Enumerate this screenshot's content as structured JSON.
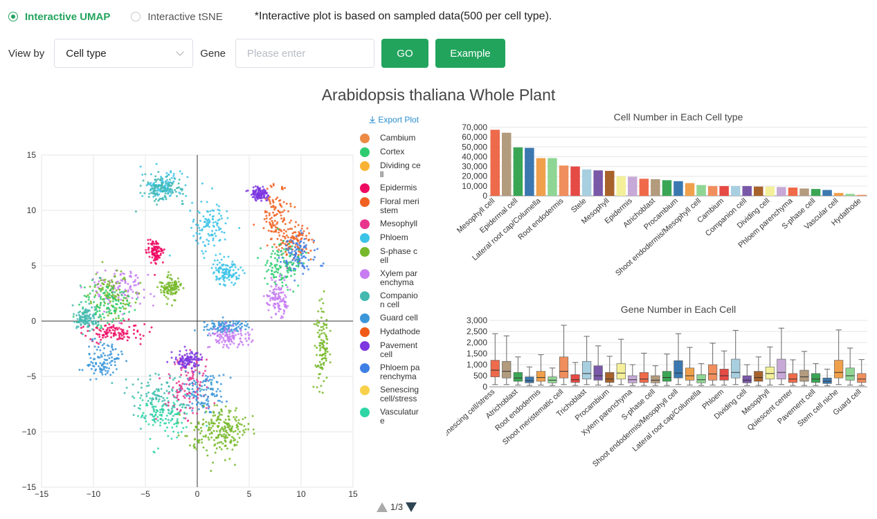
{
  "view_mode": {
    "options": [
      "Interactive UMAP",
      "Interactive tSNE"
    ],
    "selected": "Interactive UMAP",
    "note": "*Interactive plot is based on sampled data(500 per cell type)."
  },
  "controls": {
    "view_by_label": "View by",
    "view_by_value": "Cell type",
    "gene_label": "Gene",
    "gene_placeholder": "Please enter",
    "go_label": "GO",
    "example_label": "Example"
  },
  "title": "Arabidopsis thaliana Whole Plant",
  "export_label": "Export Plot",
  "legend": {
    "items": [
      {
        "label": "Cambium",
        "color": "#ed8b45"
      },
      {
        "label": "Cortex",
        "color": "#2ecc71"
      },
      {
        "label": "Dividing cell",
        "color": "#f9b233"
      },
      {
        "label": "Epidermis",
        "color": "#ee0a63"
      },
      {
        "label": "Floral meristem",
        "color": "#f06020"
      },
      {
        "label": "Mesophyll",
        "color": "#e8368f"
      },
      {
        "label": "Phloem",
        "color": "#3cc3e8"
      },
      {
        "label": "S-phase cell",
        "color": "#77b82a"
      },
      {
        "label": "Xylem parenchyma",
        "color": "#c77cf2"
      },
      {
        "label": "Companion cell",
        "color": "#43b9b0"
      },
      {
        "label": "Guard cell",
        "color": "#3c97d9"
      },
      {
        "label": "Hydathode",
        "color": "#f05a16"
      },
      {
        "label": "Pavement cell",
        "color": "#7d36e0"
      },
      {
        "label": "Phloem parenchyma",
        "color": "#3f7fe6"
      },
      {
        "label": "Senescing cell/stress",
        "color": "#f8d04a"
      },
      {
        "label": "Vasculature",
        "color": "#2ed6a6"
      }
    ],
    "page": "1/3"
  },
  "chart_data": [
    {
      "type": "scatter",
      "xlim": [
        -15,
        15
      ],
      "ylim": [
        -15,
        15
      ],
      "xticks": [
        "−15",
        "−10",
        "−5",
        "0",
        "5",
        "10",
        "15"
      ],
      "yticks": [
        "15",
        "10",
        "5",
        "0",
        "−5",
        "−10",
        "−15"
      ],
      "grid": true,
      "clusters": [
        {
          "color": "#3cc3e8",
          "x": -3.4,
          "y": 12.2,
          "sx": 1.0,
          "sy": 0.6
        },
        {
          "color": "#43b9b0",
          "x": -3.2,
          "y": 12.0,
          "sx": 1.0,
          "sy": 0.6
        },
        {
          "color": "#3cc3e8",
          "x": 1.2,
          "y": 8.6,
          "sx": 0.9,
          "sy": 1.1
        },
        {
          "color": "#ee0a63",
          "x": -4.0,
          "y": 6.2,
          "sx": 0.4,
          "sy": 0.5
        },
        {
          "color": "#c77cf2",
          "x": -7.5,
          "y": 3.0,
          "sx": 1.5,
          "sy": 1.0
        },
        {
          "color": "#77b82a",
          "x": -8.2,
          "y": 2.5,
          "sx": 1.0,
          "sy": 1.0
        },
        {
          "color": "#2ecc71",
          "x": -9.0,
          "y": 1.5,
          "sx": 1.2,
          "sy": 1.0
        },
        {
          "color": "#ee0a63",
          "x": -7.8,
          "y": -1.0,
          "sx": 1.5,
          "sy": 0.4
        },
        {
          "color": "#43b9b0",
          "x": -10.8,
          "y": 0.2,
          "sx": 0.6,
          "sy": 0.5
        },
        {
          "color": "#3c97d9",
          "x": -9.0,
          "y": -3.5,
          "sx": 0.8,
          "sy": 0.8
        },
        {
          "color": "#77b82a",
          "x": -2.6,
          "y": 3.0,
          "sx": 0.5,
          "sy": 0.5
        },
        {
          "color": "#3cc3e8",
          "x": 2.8,
          "y": 4.5,
          "sx": 0.6,
          "sy": 0.6
        },
        {
          "color": "#f06020",
          "x": 7.5,
          "y": 9.5,
          "sx": 0.8,
          "sy": 1.3
        },
        {
          "color": "#f06020",
          "x": 9.5,
          "y": 7.2,
          "sx": 1.0,
          "sy": 0.8
        },
        {
          "color": "#3f7fe6",
          "x": 9.8,
          "y": 6.0,
          "sx": 0.8,
          "sy": 0.8
        },
        {
          "color": "#2ecc71",
          "x": 8.2,
          "y": 5.0,
          "sx": 0.9,
          "sy": 1.0
        },
        {
          "color": "#c77cf2",
          "x": 7.8,
          "y": 2.0,
          "sx": 0.5,
          "sy": 0.8
        },
        {
          "color": "#7d36e0",
          "x": 6.0,
          "y": 11.5,
          "sx": 0.4,
          "sy": 0.3
        },
        {
          "color": "#77b82a",
          "x": 12.0,
          "y": -2.5,
          "sx": 0.35,
          "sy": 1.8
        },
        {
          "color": "#3c97d9",
          "x": 2.5,
          "y": -0.5,
          "sx": 1.0,
          "sy": 0.3
        },
        {
          "color": "#c77cf2",
          "x": 3.0,
          "y": -1.5,
          "sx": 1.0,
          "sy": 0.5
        },
        {
          "color": "#43b9b0",
          "x": -3.5,
          "y": -7.0,
          "sx": 1.6,
          "sy": 1.2
        },
        {
          "color": "#e8368f",
          "x": -1.0,
          "y": -6.0,
          "sx": 1.0,
          "sy": 1.5
        },
        {
          "color": "#3c97d9",
          "x": 0.5,
          "y": -6.5,
          "sx": 1.0,
          "sy": 1.0
        },
        {
          "color": "#77b82a",
          "x": 1.5,
          "y": -10.5,
          "sx": 1.5,
          "sy": 1.0
        },
        {
          "color": "#77b82a",
          "x": 3.0,
          "y": -9.5,
          "sx": 1.0,
          "sy": 0.8
        },
        {
          "color": "#7d36e0",
          "x": -1.0,
          "y": -3.5,
          "sx": 0.6,
          "sy": 0.4
        },
        {
          "color": "#2ed6a6",
          "x": -3.2,
          "y": -8.5,
          "sx": 1.2,
          "sy": 1.0
        }
      ]
    },
    {
      "type": "bar",
      "title": "Cell Number in Each Cell type",
      "ylim": [
        0,
        70000
      ],
      "yticks": [
        "0",
        "10,000",
        "20,000",
        "30,000",
        "40,000",
        "50,000",
        "60,000",
        "70,000"
      ],
      "categories": [
        "Mesophyll cell",
        "",
        "Epidermal cell",
        "",
        "Lateral root cap/Columella",
        "",
        "Root endodermis",
        "",
        "Stele",
        "",
        "Mesophyll",
        "",
        "Epidermis",
        "",
        "Atrichoblast",
        "",
        "Procambium",
        "",
        "Shoot endodermis/Mesophyll cell",
        "",
        "Cambium",
        "",
        "Companion cell",
        "",
        "Dividing cell",
        "",
        "Phloem parenchyma",
        "",
        "S-phase cell",
        "",
        "Vascular cell",
        "",
        "Hydathode"
      ],
      "values": [
        67500,
        64500,
        49500,
        49000,
        38500,
        38500,
        31000,
        30000,
        27000,
        26000,
        25500,
        20000,
        19500,
        17500,
        17000,
        16000,
        15000,
        13000,
        11000,
        10000,
        10000,
        10000,
        10000,
        9500,
        9500,
        9000,
        8500,
        7500,
        7000,
        6000,
        3000,
        2000,
        1000
      ],
      "colors": [
        "#ed6a4b",
        "#b39b7e",
        "#3aa655",
        "#3c78b0",
        "#f0a04b",
        "#8fd694",
        "#f08f5d",
        "#e64a44",
        "#a8cfe0",
        "#7a58a8",
        "#a8622b",
        "#f4f09a",
        "#c7a9d8",
        "#f06a4a",
        "#b39b7e",
        "#3aa655",
        "#3c78b0",
        "#f0a04b",
        "#8fd694",
        "#f08f5d",
        "#e64a44",
        "#a8cfe0",
        "#7a58a8",
        "#a8622b",
        "#f4f09a",
        "#c7a9d8",
        "#f06a4a",
        "#b39b7e",
        "#3aa655",
        "#3c78b0",
        "#f0a04b",
        "#8fd694",
        "#f08f5d"
      ]
    },
    {
      "type": "box",
      "title": "Gene Number in Each Cell",
      "ylim": [
        0,
        3000
      ],
      "yticks": [
        "0",
        "500",
        "1,000",
        "1,500",
        "2,000",
        "2,500",
        "3,000"
      ],
      "categories": [
        "Senescing cell/stress",
        "",
        "Atrichoblast",
        "",
        "Root endodermis",
        "",
        "Shoot meristematic cell",
        "",
        "Trichoblast",
        "",
        "Procambium",
        "",
        "Xylem parenchyma",
        "",
        "S-phase cell",
        "",
        "Shoot endodermis/Mesophyll cell",
        "",
        "Lateral root cap/Columella",
        "",
        "Phloem",
        "",
        "Dividing cell",
        "",
        "Mesophyll",
        "",
        "Quiescent center",
        "",
        "Pavement cell",
        "",
        "Stem cell niche",
        "",
        "Guard cell"
      ],
      "boxes": [
        {
          "min": 100,
          "q1": 450,
          "med": 750,
          "q3": 1200,
          "max": 2400
        },
        {
          "min": 100,
          "q1": 400,
          "med": 700,
          "q3": 1150,
          "max": 2300
        },
        {
          "min": 80,
          "q1": 250,
          "med": 400,
          "q3": 650,
          "max": 1350
        },
        {
          "min": 60,
          "q1": 180,
          "med": 280,
          "q3": 450,
          "max": 900
        },
        {
          "min": 80,
          "q1": 250,
          "med": 420,
          "q3": 700,
          "max": 1450
        },
        {
          "min": 60,
          "q1": 180,
          "med": 300,
          "q3": 450,
          "max": 850
        },
        {
          "min": 100,
          "q1": 400,
          "med": 700,
          "q3": 1350,
          "max": 2780
        },
        {
          "min": 60,
          "q1": 200,
          "med": 320,
          "q3": 550,
          "max": 1100
        },
        {
          "min": 100,
          "q1": 350,
          "med": 600,
          "q3": 1150,
          "max": 2280
        },
        {
          "min": 80,
          "q1": 300,
          "med": 500,
          "q3": 950,
          "max": 1850
        },
        {
          "min": 60,
          "q1": 200,
          "med": 350,
          "q3": 650,
          "max": 1380
        },
        {
          "min": 100,
          "q1": 350,
          "med": 620,
          "q3": 1050,
          "max": 2150
        },
        {
          "min": 60,
          "q1": 180,
          "med": 320,
          "q3": 500,
          "max": 1000
        },
        {
          "min": 60,
          "q1": 200,
          "med": 350,
          "q3": 650,
          "max": 1520
        },
        {
          "min": 60,
          "q1": 180,
          "med": 300,
          "q3": 500,
          "max": 950
        },
        {
          "min": 60,
          "q1": 250,
          "med": 420,
          "q3": 700,
          "max": 1480
        },
        {
          "min": 100,
          "q1": 400,
          "med": 620,
          "q3": 1180,
          "max": 2400
        },
        {
          "min": 80,
          "q1": 300,
          "med": 500,
          "q3": 850,
          "max": 1780
        },
        {
          "min": 60,
          "q1": 180,
          "med": 320,
          "q3": 550,
          "max": 1050
        },
        {
          "min": 80,
          "q1": 300,
          "med": 580,
          "q3": 1000,
          "max": 1970
        },
        {
          "min": 80,
          "q1": 300,
          "med": 500,
          "q3": 800,
          "max": 1620
        },
        {
          "min": 100,
          "q1": 400,
          "med": 650,
          "q3": 1250,
          "max": 2550
        },
        {
          "min": 60,
          "q1": 180,
          "med": 300,
          "q3": 500,
          "max": 1000
        },
        {
          "min": 60,
          "q1": 250,
          "med": 420,
          "q3": 700,
          "max": 1350
        },
        {
          "min": 80,
          "q1": 350,
          "med": 600,
          "q3": 900,
          "max": 1800
        },
        {
          "min": 100,
          "q1": 350,
          "med": 650,
          "q3": 1250,
          "max": 2650
        },
        {
          "min": 60,
          "q1": 200,
          "med": 350,
          "q3": 600,
          "max": 1220
        },
        {
          "min": 60,
          "q1": 250,
          "med": 450,
          "q3": 750,
          "max": 1600
        },
        {
          "min": 60,
          "q1": 200,
          "med": 350,
          "q3": 600,
          "max": 1050
        },
        {
          "min": 50,
          "q1": 150,
          "med": 250,
          "q3": 400,
          "max": 800
        },
        {
          "min": 100,
          "q1": 400,
          "med": 650,
          "q3": 1200,
          "max": 2570
        },
        {
          "min": 80,
          "q1": 300,
          "med": 500,
          "q3": 850,
          "max": 1750
        },
        {
          "min": 60,
          "q1": 200,
          "med": 350,
          "q3": 600,
          "max": 1230
        }
      ],
      "colors": [
        "#ed6a4b",
        "#b39b7e",
        "#3aa655",
        "#3c78b0",
        "#f0a04b",
        "#8fd694",
        "#f08f5d",
        "#e64a44",
        "#a8cfe0",
        "#7a58a8",
        "#a8622b",
        "#f4f09a",
        "#c7a9d8",
        "#f06a4a",
        "#b39b7e",
        "#3aa655",
        "#3c78b0",
        "#f0a04b",
        "#8fd694",
        "#f08f5d",
        "#e64a44",
        "#a8cfe0",
        "#7a58a8",
        "#a8622b",
        "#f4f09a",
        "#c7a9d8",
        "#f06a4a",
        "#b39b7e",
        "#3aa655",
        "#3c78b0",
        "#f0a04b",
        "#8fd694",
        "#f08f5d"
      ]
    }
  ]
}
